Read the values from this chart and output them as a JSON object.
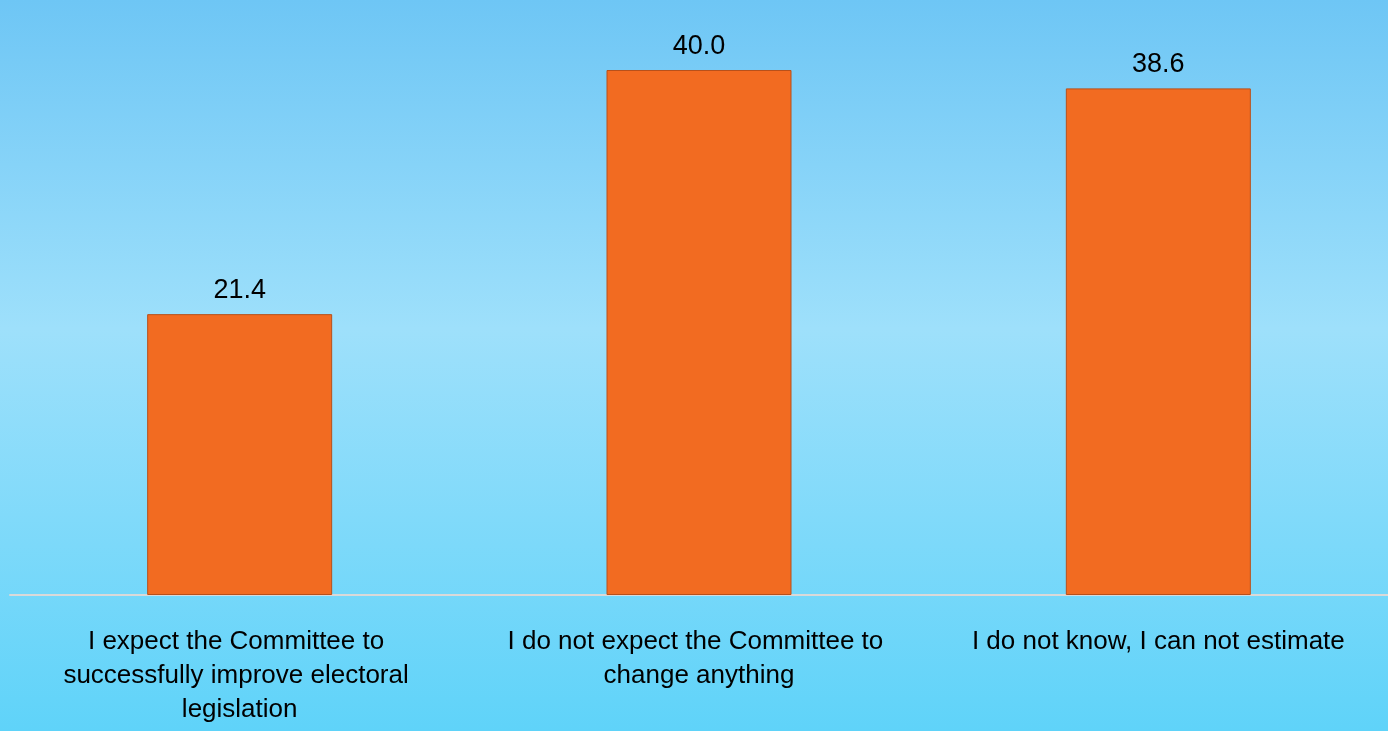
{
  "chart_data": {
    "type": "bar",
    "categories": [
      "I expect the Committee to successfully improve electoral legislation",
      "I do not expect the Committee to change anything",
      "I do not know, I can not estimate"
    ],
    "values": [
      21.4,
      40.0,
      38.6
    ],
    "value_labels": [
      "21.4",
      "40.0",
      "38.6"
    ],
    "color": "#f26b21"
  }
}
